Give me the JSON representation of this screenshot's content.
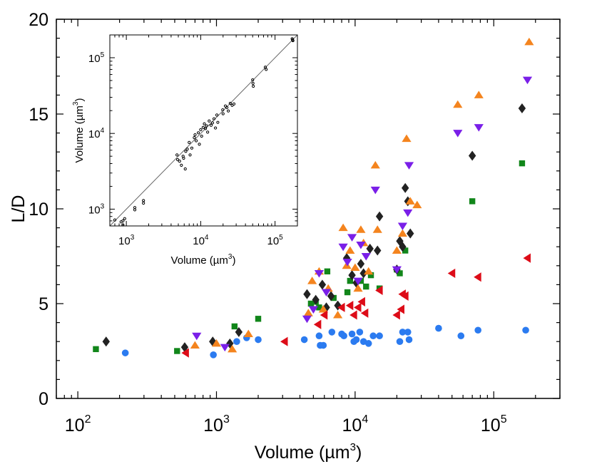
{
  "chart_data": [
    {
      "type": "scatter",
      "xscale": "log",
      "xlim": [
        70,
        300000
      ],
      "ylim": [
        0,
        20
      ],
      "xlabel": "Volume (µm",
      "xlabel_sup": "3",
      "xlabel_close": ")",
      "ylabel": "L/D",
      "x_ticks": [
        {
          "value": 100,
          "base": "10",
          "exp": "2"
        },
        {
          "value": 1000,
          "base": "10",
          "exp": "3"
        },
        {
          "value": 10000,
          "base": "10",
          "exp": "4"
        },
        {
          "value": 100000,
          "base": "10",
          "exp": "5"
        }
      ],
      "y_ticks": [
        {
          "value": 0,
          "label": "0"
        },
        {
          "value": 5,
          "label": "5"
        },
        {
          "value": 10,
          "label": "10"
        },
        {
          "value": 15,
          "label": "15"
        },
        {
          "value": 20,
          "label": "20"
        }
      ],
      "series": [
        {
          "name": "circle",
          "marker": "circle",
          "color": "#2b7bf0",
          "points": [
            [
              220,
              2.4
            ],
            [
              950,
              2.3
            ],
            [
              1400,
              3.0
            ],
            [
              1650,
              3.2
            ],
            [
              2000,
              3.1
            ],
            [
              4300,
              3.1
            ],
            [
              5500,
              3.3
            ],
            [
              5600,
              2.8
            ],
            [
              5900,
              2.8
            ],
            [
              6800,
              3.5
            ],
            [
              8000,
              3.4
            ],
            [
              8300,
              3.3
            ],
            [
              9500,
              3.4
            ],
            [
              9800,
              3.0
            ],
            [
              10200,
              3.1
            ],
            [
              10800,
              3.5
            ],
            [
              11500,
              3.0
            ],
            [
              12500,
              2.9
            ],
            [
              13500,
              3.3
            ],
            [
              15000,
              3.3
            ],
            [
              21000,
              3.0
            ],
            [
              22000,
              3.5
            ],
            [
              24000,
              3.5
            ],
            [
              24500,
              3.1
            ],
            [
              40000,
              3.7
            ],
            [
              58000,
              3.3
            ],
            [
              77000,
              3.6
            ],
            [
              170000,
              3.6
            ]
          ]
        },
        {
          "name": "square",
          "marker": "square",
          "color": "#11861a",
          "points": [
            [
              135,
              2.6
            ],
            [
              520,
              2.5
            ],
            [
              1350,
              3.8
            ],
            [
              2000,
              4.2
            ],
            [
              4800,
              5.0
            ],
            [
              5200,
              5.1
            ],
            [
              5500,
              4.8
            ],
            [
              6300,
              6.7
            ],
            [
              7000,
              5.3
            ],
            [
              8800,
              5.6
            ],
            [
              9200,
              6.2
            ],
            [
              11000,
              6.2
            ],
            [
              12000,
              5.9
            ],
            [
              13000,
              6.5
            ],
            [
              15000,
              5.8
            ],
            [
              20000,
              6.8
            ],
            [
              21000,
              6.6
            ],
            [
              23000,
              7.8
            ],
            [
              70000,
              10.4
            ],
            [
              160000,
              12.4
            ]
          ]
        },
        {
          "name": "diamond",
          "marker": "diamond",
          "color": "#222222",
          "points": [
            [
              160,
              3.0
            ],
            [
              590,
              2.7
            ],
            [
              940,
              3.0
            ],
            [
              1250,
              2.9
            ],
            [
              1450,
              3.5
            ],
            [
              4500,
              5.5
            ],
            [
              5200,
              5.2
            ],
            [
              5800,
              6.0
            ],
            [
              6200,
              4.8
            ],
            [
              6700,
              5.4
            ],
            [
              7500,
              4.9
            ],
            [
              8700,
              7.4
            ],
            [
              9500,
              6.5
            ],
            [
              10200,
              6.1
            ],
            [
              11000,
              7.1
            ],
            [
              11500,
              6.6
            ],
            [
              12800,
              7.9
            ],
            [
              14500,
              7.8
            ],
            [
              15000,
              9.6
            ],
            [
              20000,
              6.8
            ],
            [
              21000,
              8.3
            ],
            [
              22000,
              8.0
            ],
            [
              23000,
              11.1
            ],
            [
              24000,
              10.4
            ],
            [
              25000,
              8.7
            ],
            [
              70000,
              12.8
            ],
            [
              160000,
              15.3
            ]
          ]
        },
        {
          "name": "up",
          "marker": "triangle-up",
          "color": "#f4841e",
          "points": [
            [
              700,
              2.8
            ],
            [
              1000,
              2.9
            ],
            [
              1300,
              2.6
            ],
            [
              1700,
              3.4
            ],
            [
              4600,
              4.5
            ],
            [
              4900,
              6.2
            ],
            [
              5500,
              6.7
            ],
            [
              5900,
              4.7
            ],
            [
              6400,
              5.8
            ],
            [
              7500,
              4.4
            ],
            [
              8200,
              9.0
            ],
            [
              8700,
              7.0
            ],
            [
              9200,
              7.8
            ],
            [
              10000,
              6.9
            ],
            [
              10500,
              5.8
            ],
            [
              11000,
              8.9
            ],
            [
              11500,
              8.2
            ],
            [
              12500,
              6.7
            ],
            [
              14000,
              12.3
            ],
            [
              14500,
              8.9
            ],
            [
              20000,
              7.8
            ],
            [
              22000,
              8.7
            ],
            [
              23500,
              13.7
            ],
            [
              25000,
              10.4
            ],
            [
              28000,
              10.2
            ],
            [
              55000,
              15.5
            ],
            [
              78000,
              16.0
            ],
            [
              180000,
              18.8
            ]
          ]
        },
        {
          "name": "down",
          "marker": "triangle-down",
          "color": "#7a1fe8",
          "points": [
            [
              720,
              3.3
            ],
            [
              1150,
              2.7
            ],
            [
              4500,
              4.2
            ],
            [
              5000,
              4.7
            ],
            [
              5500,
              6.6
            ],
            [
              6200,
              5.6
            ],
            [
              8200,
              8.0
            ],
            [
              8800,
              7.2
            ],
            [
              9500,
              8.5
            ],
            [
              10500,
              6.2
            ],
            [
              11000,
              8.1
            ],
            [
              12000,
              7.5
            ],
            [
              14000,
              11.0
            ],
            [
              20000,
              6.8
            ],
            [
              22000,
              9.1
            ],
            [
              24000,
              9.8
            ],
            [
              24500,
              12.3
            ],
            [
              55000,
              14.0
            ],
            [
              78000,
              14.3
            ],
            [
              175000,
              16.8
            ]
          ]
        },
        {
          "name": "left",
          "marker": "triangle-left",
          "color": "#dd0c18",
          "points": [
            [
              600,
              2.4
            ],
            [
              3100,
              3.0
            ],
            [
              5400,
              3.9
            ],
            [
              6000,
              4.4
            ],
            [
              8000,
              4.8
            ],
            [
              9200,
              4.9
            ],
            [
              9800,
              4.4
            ],
            [
              10500,
              4.8
            ],
            [
              11200,
              5.1
            ],
            [
              11800,
              4.5
            ],
            [
              15000,
              5.7
            ],
            [
              20000,
              4.4
            ],
            [
              21500,
              4.7
            ],
            [
              22000,
              5.5
            ],
            [
              23000,
              5.4
            ],
            [
              50000,
              6.6
            ],
            [
              77000,
              6.4
            ],
            [
              175000,
              7.4
            ]
          ]
        }
      ]
    },
    {
      "type": "scatter",
      "xscale": "log",
      "yscale": "log",
      "xlim": [
        600,
        200000
      ],
      "ylim": [
        600,
        200000
      ],
      "xlabel": "Volume (µm",
      "xlabel_sup": "3",
      "xlabel_close": ")",
      "ylabel": "Volume (µm",
      "ylabel_sup": "3",
      "ylabel_close": ")",
      "ticks": [
        {
          "value": 1000,
          "base": "10",
          "exp": "3"
        },
        {
          "value": 10000,
          "base": "10",
          "exp": "4"
        },
        {
          "value": 100000,
          "base": "10",
          "exp": "5"
        }
      ],
      "fit_line": {
        "x": [
          600,
          200000
        ],
        "y": [
          600,
          200000
        ]
      },
      "marker": "circle-open",
      "color": "#000000",
      "points": [
        [
          700,
          720
        ],
        [
          850,
          680
        ],
        [
          900,
          620
        ],
        [
          900,
          700
        ],
        [
          950,
          750
        ],
        [
          1300,
          1050
        ],
        [
          1300,
          980
        ],
        [
          1700,
          1300
        ],
        [
          1700,
          1200
        ],
        [
          4800,
          5200
        ],
        [
          4900,
          4500
        ],
        [
          5200,
          4300
        ],
        [
          5500,
          3800
        ],
        [
          5800,
          5000
        ],
        [
          5900,
          4700
        ],
        [
          6200,
          3400
        ],
        [
          6300,
          5800
        ],
        [
          6600,
          6200
        ],
        [
          7000,
          7600
        ],
        [
          7200,
          5200
        ],
        [
          7600,
          6400
        ],
        [
          8200,
          8800
        ],
        [
          8400,
          9600
        ],
        [
          8700,
          8000
        ],
        [
          9300,
          10200
        ],
        [
          9600,
          7200
        ],
        [
          10000,
          11200
        ],
        [
          10300,
          9200
        ],
        [
          10800,
          12000
        ],
        [
          11200,
          13400
        ],
        [
          11600,
          11600
        ],
        [
          12000,
          12600
        ],
        [
          12400,
          10400
        ],
        [
          13000,
          14600
        ],
        [
          13800,
          12800
        ],
        [
          14400,
          13800
        ],
        [
          15100,
          15600
        ],
        [
          15800,
          11800
        ],
        [
          16500,
          17500
        ],
        [
          17000,
          14000
        ],
        [
          19800,
          20500
        ],
        [
          20000,
          18200
        ],
        [
          21500,
          23000
        ],
        [
          22500,
          22000
        ],
        [
          23500,
          19800
        ],
        [
          25000,
          25000
        ],
        [
          26500,
          23500
        ],
        [
          28000,
          24500
        ],
        [
          50000,
          51000
        ],
        [
          50500,
          46000
        ],
        [
          51000,
          42000
        ],
        [
          74000,
          75000
        ],
        [
          76000,
          70000
        ],
        [
          170000,
          178000
        ],
        [
          172000,
          172000
        ],
        [
          174000,
          168000
        ]
      ]
    }
  ]
}
